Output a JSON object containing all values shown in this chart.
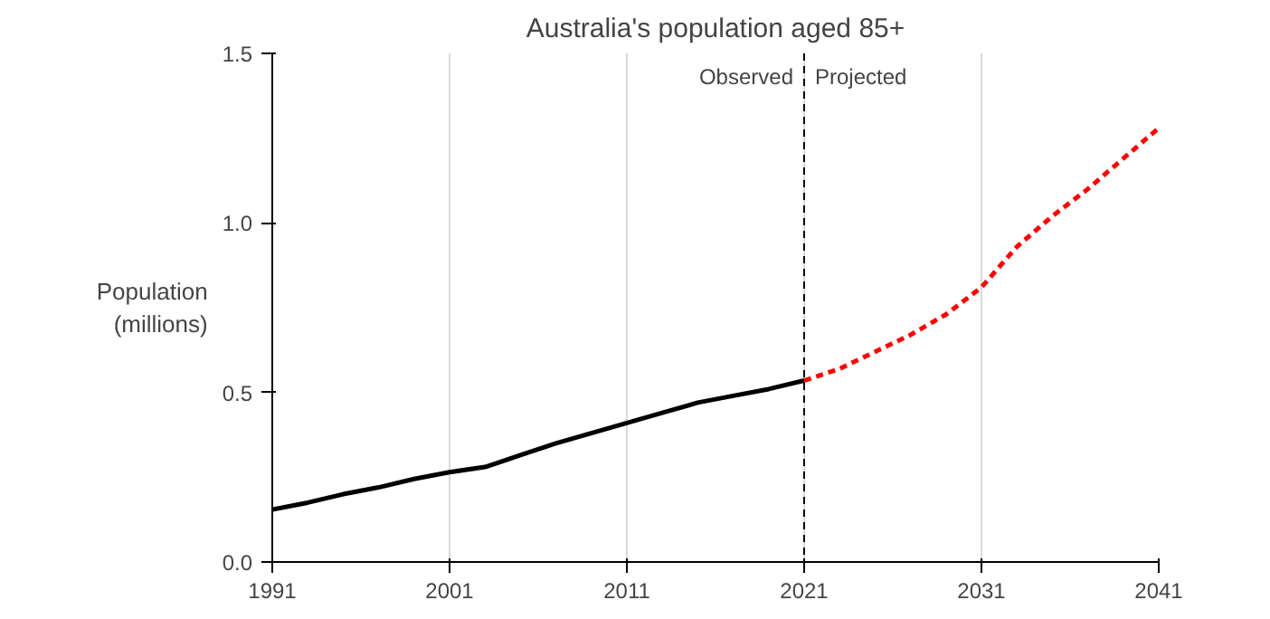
{
  "chart_data": {
    "type": "line",
    "title": "Australia's population aged 85+",
    "ylabel": "Population\n(millions)",
    "series": [
      {
        "color": "#000000",
        "line_style": "solid",
        "x": [
          1991,
          1993,
          1995,
          1997,
          1999,
          2001,
          2003,
          2005,
          2007,
          2009,
          2011,
          2013,
          2015,
          2017,
          2019,
          2021
        ],
        "values": [
          0.155,
          0.175,
          0.2,
          0.22,
          0.245,
          0.265,
          0.28,
          0.315,
          0.35,
          0.38,
          0.41,
          0.44,
          0.47,
          0.49,
          0.51,
          0.535
        ]
      },
      {
        "color": "#ff0000",
        "line_style": "dashed",
        "x": [
          2021,
          2023,
          2025,
          2027,
          2029,
          2031,
          2033,
          2035,
          2037,
          2039,
          2041
        ],
        "values": [
          0.535,
          0.57,
          0.62,
          0.67,
          0.73,
          0.81,
          0.93,
          1.02,
          1.1,
          1.19,
          1.28
        ]
      }
    ],
    "xlim": [
      1991,
      2041
    ],
    "xticks": [
      1991,
      2001,
      2011,
      2021,
      2031,
      2041
    ],
    "ylim": [
      0,
      1.5
    ],
    "yticks": [
      {
        "value": 0,
        "label": "0.0"
      },
      {
        "value": 0.5,
        "label": "0.5"
      },
      {
        "value": 1,
        "label": "1.0"
      },
      {
        "value": 1.5,
        "label": "1.5"
      }
    ],
    "grid": "x",
    "ref_lines": [
      {
        "axis": "x",
        "value": 2021,
        "color": "#000000",
        "line_style": "dashed"
      }
    ],
    "annotations": [
      {
        "text": "Observed",
        "x": 2021,
        "y": 1.43
      },
      {
        "text": "Projected",
        "x": 2021,
        "y": 1.43
      }
    ]
  }
}
